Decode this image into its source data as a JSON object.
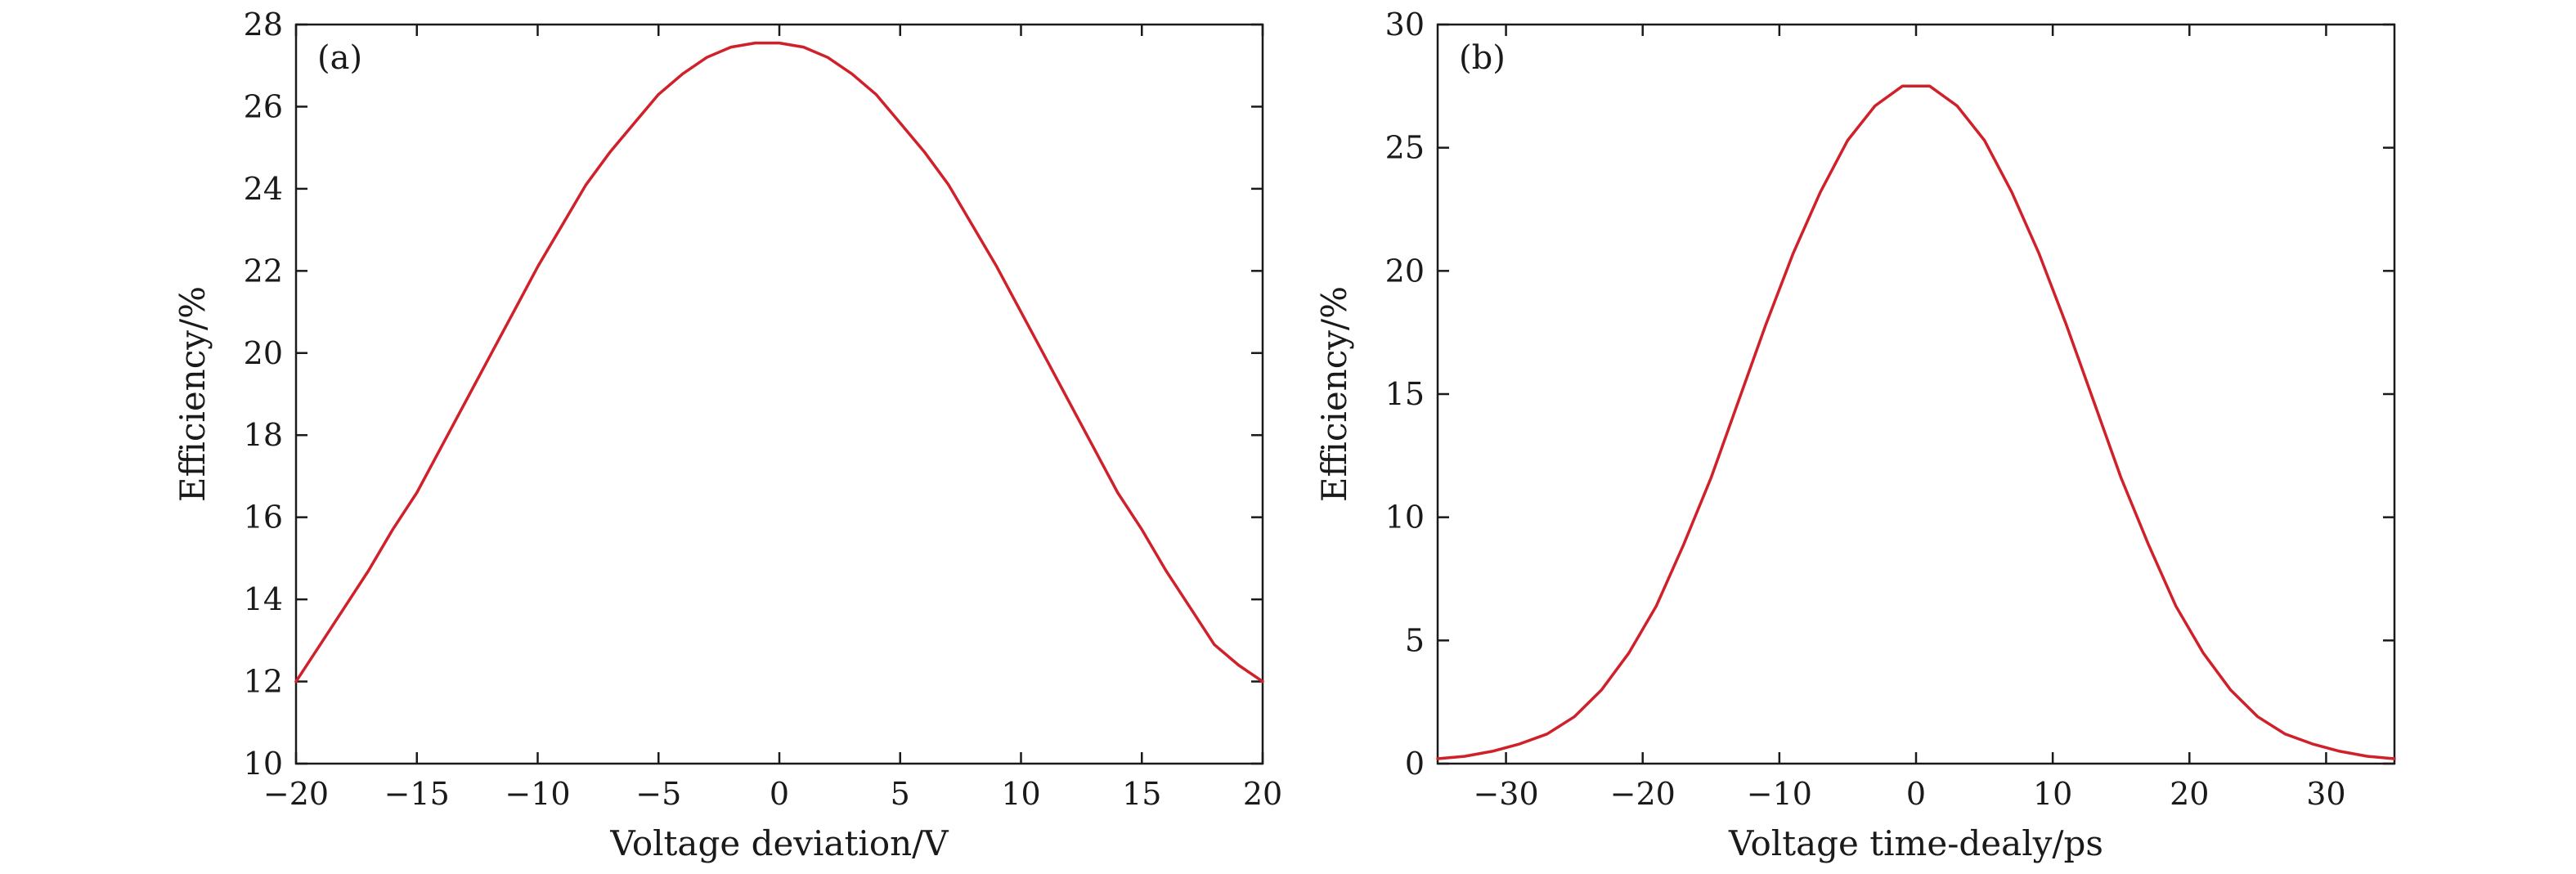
{
  "chart_data": [
    {
      "type": "line",
      "panel_label": "(a)",
      "xlabel": "Voltage deviation/V",
      "ylabel": "Efficiency/%",
      "xlim": [
        -20,
        20
      ],
      "ylim": [
        10,
        28
      ],
      "xticks": [
        -20,
        -15,
        -10,
        -5,
        0,
        5,
        10,
        15,
        20
      ],
      "xtick_labels": [
        "−20",
        "−15",
        "−10",
        "−5",
        "0",
        "5",
        "10",
        "15",
        "20"
      ],
      "yticks": [
        10,
        12,
        14,
        16,
        18,
        20,
        22,
        24,
        26,
        28
      ],
      "ytick_labels": [
        "10",
        "12",
        "14",
        "16",
        "18",
        "20",
        "22",
        "24",
        "26",
        "28"
      ],
      "grid": false,
      "series": [
        {
          "color": "#d0202a",
          "x": [
            -20,
            -19,
            -18,
            -17,
            -16,
            -15,
            -14,
            -13,
            -12,
            -11,
            -10,
            -9,
            -8,
            -7,
            -6,
            -5,
            -4,
            -3,
            -2,
            -1,
            0,
            1,
            2,
            3,
            4,
            5,
            6,
            7,
            8,
            9,
            10,
            11,
            12,
            13,
            14,
            15,
            16,
            17,
            18,
            19,
            20
          ],
          "y": [
            12.0,
            12.9,
            13.8,
            14.7,
            15.7,
            16.6,
            17.7,
            18.8,
            19.9,
            21.0,
            22.1,
            23.1,
            24.1,
            24.9,
            25.6,
            26.3,
            26.8,
            27.2,
            27.45,
            27.55,
            27.55,
            27.45,
            27.2,
            26.8,
            26.3,
            25.6,
            24.9,
            24.1,
            23.1,
            22.1,
            21.0,
            19.9,
            18.8,
            17.7,
            16.6,
            15.7,
            14.7,
            13.8,
            12.9,
            12.4,
            12.0
          ]
        }
      ]
    },
    {
      "type": "line",
      "panel_label": "(b)",
      "xlabel": "Voltage time-dealy/ps",
      "ylabel": "Efficiency/%",
      "xlim": [
        -35,
        35
      ],
      "ylim": [
        0,
        30
      ],
      "xticks": [
        -30,
        -20,
        -10,
        0,
        10,
        20,
        30
      ],
      "xtick_labels": [
        "−30",
        "−20",
        "−10",
        "0",
        "10",
        "20",
        "30"
      ],
      "yticks": [
        0,
        5,
        10,
        15,
        20,
        25,
        30
      ],
      "ytick_labels": [
        "0",
        "5",
        "10",
        "15",
        "20",
        "25",
        "30"
      ],
      "grid": false,
      "series": [
        {
          "color": "#d0202a",
          "x": [
            -35,
            -33,
            -31,
            -29,
            -27,
            -25,
            -23,
            -21,
            -19,
            -17,
            -15,
            -13,
            -11,
            -9,
            -7,
            -5,
            -3,
            -1,
            1,
            3,
            5,
            7,
            9,
            11,
            13,
            15,
            17,
            19,
            21,
            23,
            25,
            27,
            29,
            31,
            33,
            35
          ],
          "y": [
            0.2,
            0.3,
            0.5,
            0.8,
            1.2,
            1.9,
            3.0,
            4.5,
            6.4,
            8.9,
            11.6,
            14.7,
            17.8,
            20.7,
            23.2,
            25.3,
            26.7,
            27.5,
            27.5,
            26.7,
            25.3,
            23.2,
            20.7,
            17.8,
            14.7,
            11.6,
            8.9,
            6.4,
            4.5,
            3.0,
            1.9,
            1.2,
            0.8,
            0.5,
            0.3,
            0.2
          ]
        }
      ]
    }
  ]
}
